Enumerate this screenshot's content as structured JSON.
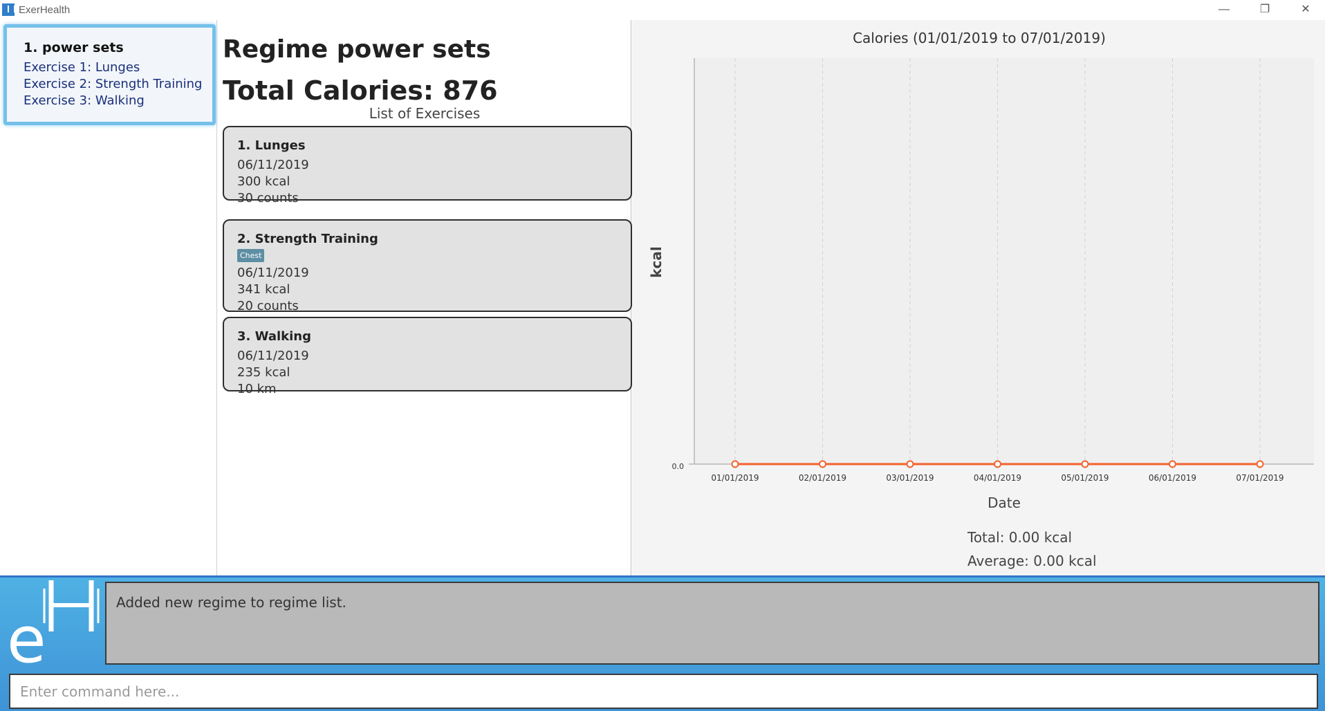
{
  "window": {
    "title": "ExerHealth",
    "minimize_glyph": "—",
    "restore_glyph": "❐",
    "close_glyph": "✕"
  },
  "regime_list": [
    {
      "title": "1.  power sets",
      "exercises": [
        "Exercise 1: Lunges",
        "Exercise 2: Strength Training",
        "Exercise 3: Walking"
      ]
    }
  ],
  "regime_detail": {
    "title": "Regime power sets",
    "total_calories": "Total Calories: 876",
    "list_heading": "List of Exercises",
    "exercises": [
      {
        "title": "1.  Lunges",
        "tag": "",
        "date": "06/11/2019",
        "calories": "300 kcal",
        "quantity": "30 counts"
      },
      {
        "title": "2.  Strength Training",
        "tag": "Chest",
        "date": "06/11/2019",
        "calories": "341 kcal",
        "quantity": "20 counts"
      },
      {
        "title": "3.  Walking",
        "tag": "",
        "date": "06/11/2019",
        "calories": "235 kcal",
        "quantity": "10 km"
      }
    ]
  },
  "chart_data": {
    "type": "line",
    "title": "Calories (01/01/2019 to 07/01/2019)",
    "xlabel": "Date",
    "ylabel": "kcal",
    "categories": [
      "01/01/2019",
      "02/01/2019",
      "03/01/2019",
      "04/01/2019",
      "05/01/2019",
      "06/01/2019",
      "07/01/2019"
    ],
    "series": [
      {
        "values": [
          0,
          0,
          0,
          0,
          0,
          0,
          0
        ],
        "color": "#f3622d"
      }
    ],
    "y_ticks": [
      "0.0"
    ],
    "grid": true,
    "total": "Total: 0.00 kcal",
    "average": "Average: 0.00 kcal"
  },
  "result_display": {
    "message": "Added new regime to regime list."
  },
  "command_box": {
    "value": "",
    "placeholder": "Enter command here..."
  },
  "colors": {
    "accent_blue": "#4fb1e4",
    "selected_border": "#74c0ea",
    "series_line": "#f3622d",
    "tag_bg": "#5d8ea3"
  }
}
